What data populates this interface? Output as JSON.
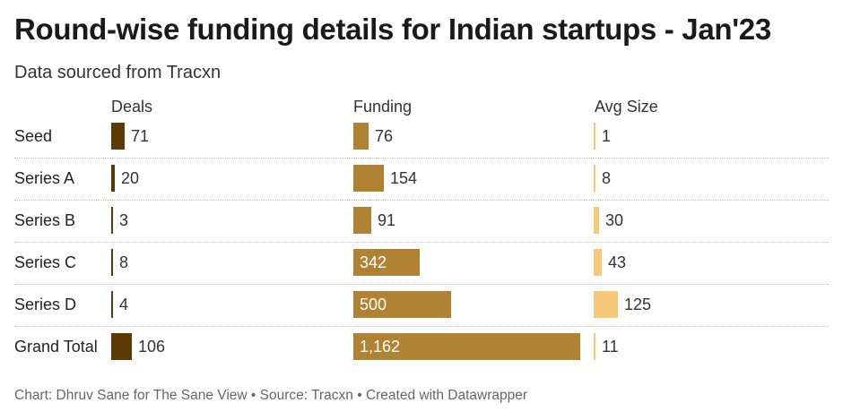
{
  "title": "Round-wise funding details for Indian startups - Jan'23",
  "subtitle": "Data sourced from Tracxn",
  "footer": "Chart: Dhruv Sane for The Sane View • Source: Tracxn • Created with Datawrapper",
  "chart_data": {
    "type": "bar",
    "title": "Round-wise funding details for Indian startups - Jan'23",
    "columns": [
      {
        "name": "Deals",
        "color": "#5c3a06",
        "max": 106
      },
      {
        "name": "Funding",
        "color": "#b08234",
        "max": 1162
      },
      {
        "name": "Avg Size",
        "color": "#f7c877",
        "max": 125
      }
    ],
    "rows": [
      {
        "label": "Seed",
        "values": [
          71,
          76,
          1
        ],
        "display": [
          "71",
          "76",
          "1"
        ]
      },
      {
        "label": "Series A",
        "values": [
          20,
          154,
          8
        ],
        "display": [
          "20",
          "154",
          "8"
        ]
      },
      {
        "label": "Series B",
        "values": [
          3,
          91,
          30
        ],
        "display": [
          "3",
          "91",
          "30"
        ]
      },
      {
        "label": "Series C",
        "values": [
          8,
          342,
          43
        ],
        "display": [
          "8",
          "342",
          "43"
        ]
      },
      {
        "label": "Series D",
        "values": [
          4,
          500,
          125
        ],
        "display": [
          "4",
          "500",
          "125"
        ]
      },
      {
        "label": "Grand Total",
        "values": [
          106,
          1162,
          11
        ],
        "display": [
          "106",
          "1,162",
          "11"
        ]
      }
    ]
  }
}
